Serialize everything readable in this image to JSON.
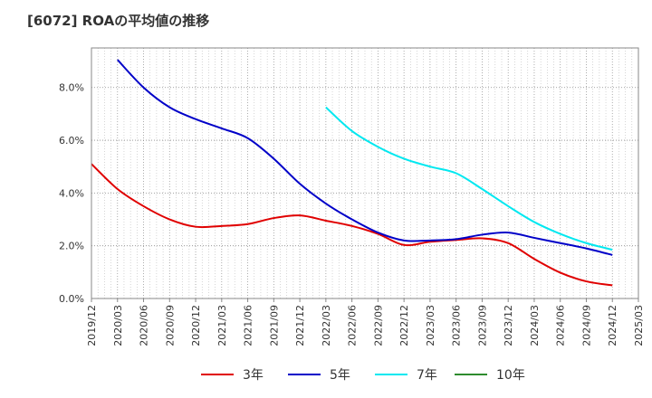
{
  "title": "[6072]  ROAの平均値の推移",
  "chart_data": {
    "type": "line",
    "title": "[6072]  ROAの平均値の推移",
    "x": [
      "2019/12",
      "2020/03",
      "2020/06",
      "2020/09",
      "2020/12",
      "2021/03",
      "2021/06",
      "2021/09",
      "2021/12",
      "2022/03",
      "2022/06",
      "2022/09",
      "2022/12",
      "2023/03",
      "2023/06",
      "2023/09",
      "2023/12",
      "2024/03",
      "2024/06",
      "2024/09",
      "2024/12",
      "2025/03"
    ],
    "y_ticks": [
      "0.0%",
      "2.0%",
      "4.0%",
      "6.0%",
      "8.0%"
    ],
    "ylim": [
      0,
      9.5
    ],
    "grid": true,
    "legend_position": "bottom",
    "series": [
      {
        "name": "3年",
        "color": "#e00000",
        "values": [
          5.1,
          4.15,
          3.5,
          3.0,
          2.72,
          2.75,
          2.82,
          3.05,
          3.15,
          2.95,
          2.75,
          2.45,
          2.03,
          2.15,
          2.22,
          2.28,
          2.1,
          1.5,
          0.98,
          0.65,
          0.5,
          null
        ]
      },
      {
        "name": "5年",
        "color": "#0000c8",
        "values": [
          null,
          9.05,
          8.0,
          7.25,
          6.8,
          6.45,
          6.08,
          5.3,
          4.35,
          3.6,
          3.0,
          2.5,
          2.2,
          2.2,
          2.25,
          2.42,
          2.5,
          2.3,
          2.1,
          1.9,
          1.65,
          null
        ]
      },
      {
        "name": "7年",
        "color": "#00e8f0",
        "values": [
          null,
          null,
          null,
          null,
          null,
          null,
          null,
          null,
          null,
          7.25,
          6.35,
          5.75,
          5.3,
          5.0,
          4.75,
          4.15,
          3.5,
          2.9,
          2.45,
          2.1,
          1.85,
          null
        ]
      },
      {
        "name": "10年",
        "color": "#2e8b2e",
        "values": [
          null,
          null,
          null,
          null,
          null,
          null,
          null,
          null,
          null,
          null,
          null,
          null,
          null,
          null,
          null,
          null,
          null,
          null,
          null,
          null,
          null,
          null
        ]
      }
    ]
  }
}
